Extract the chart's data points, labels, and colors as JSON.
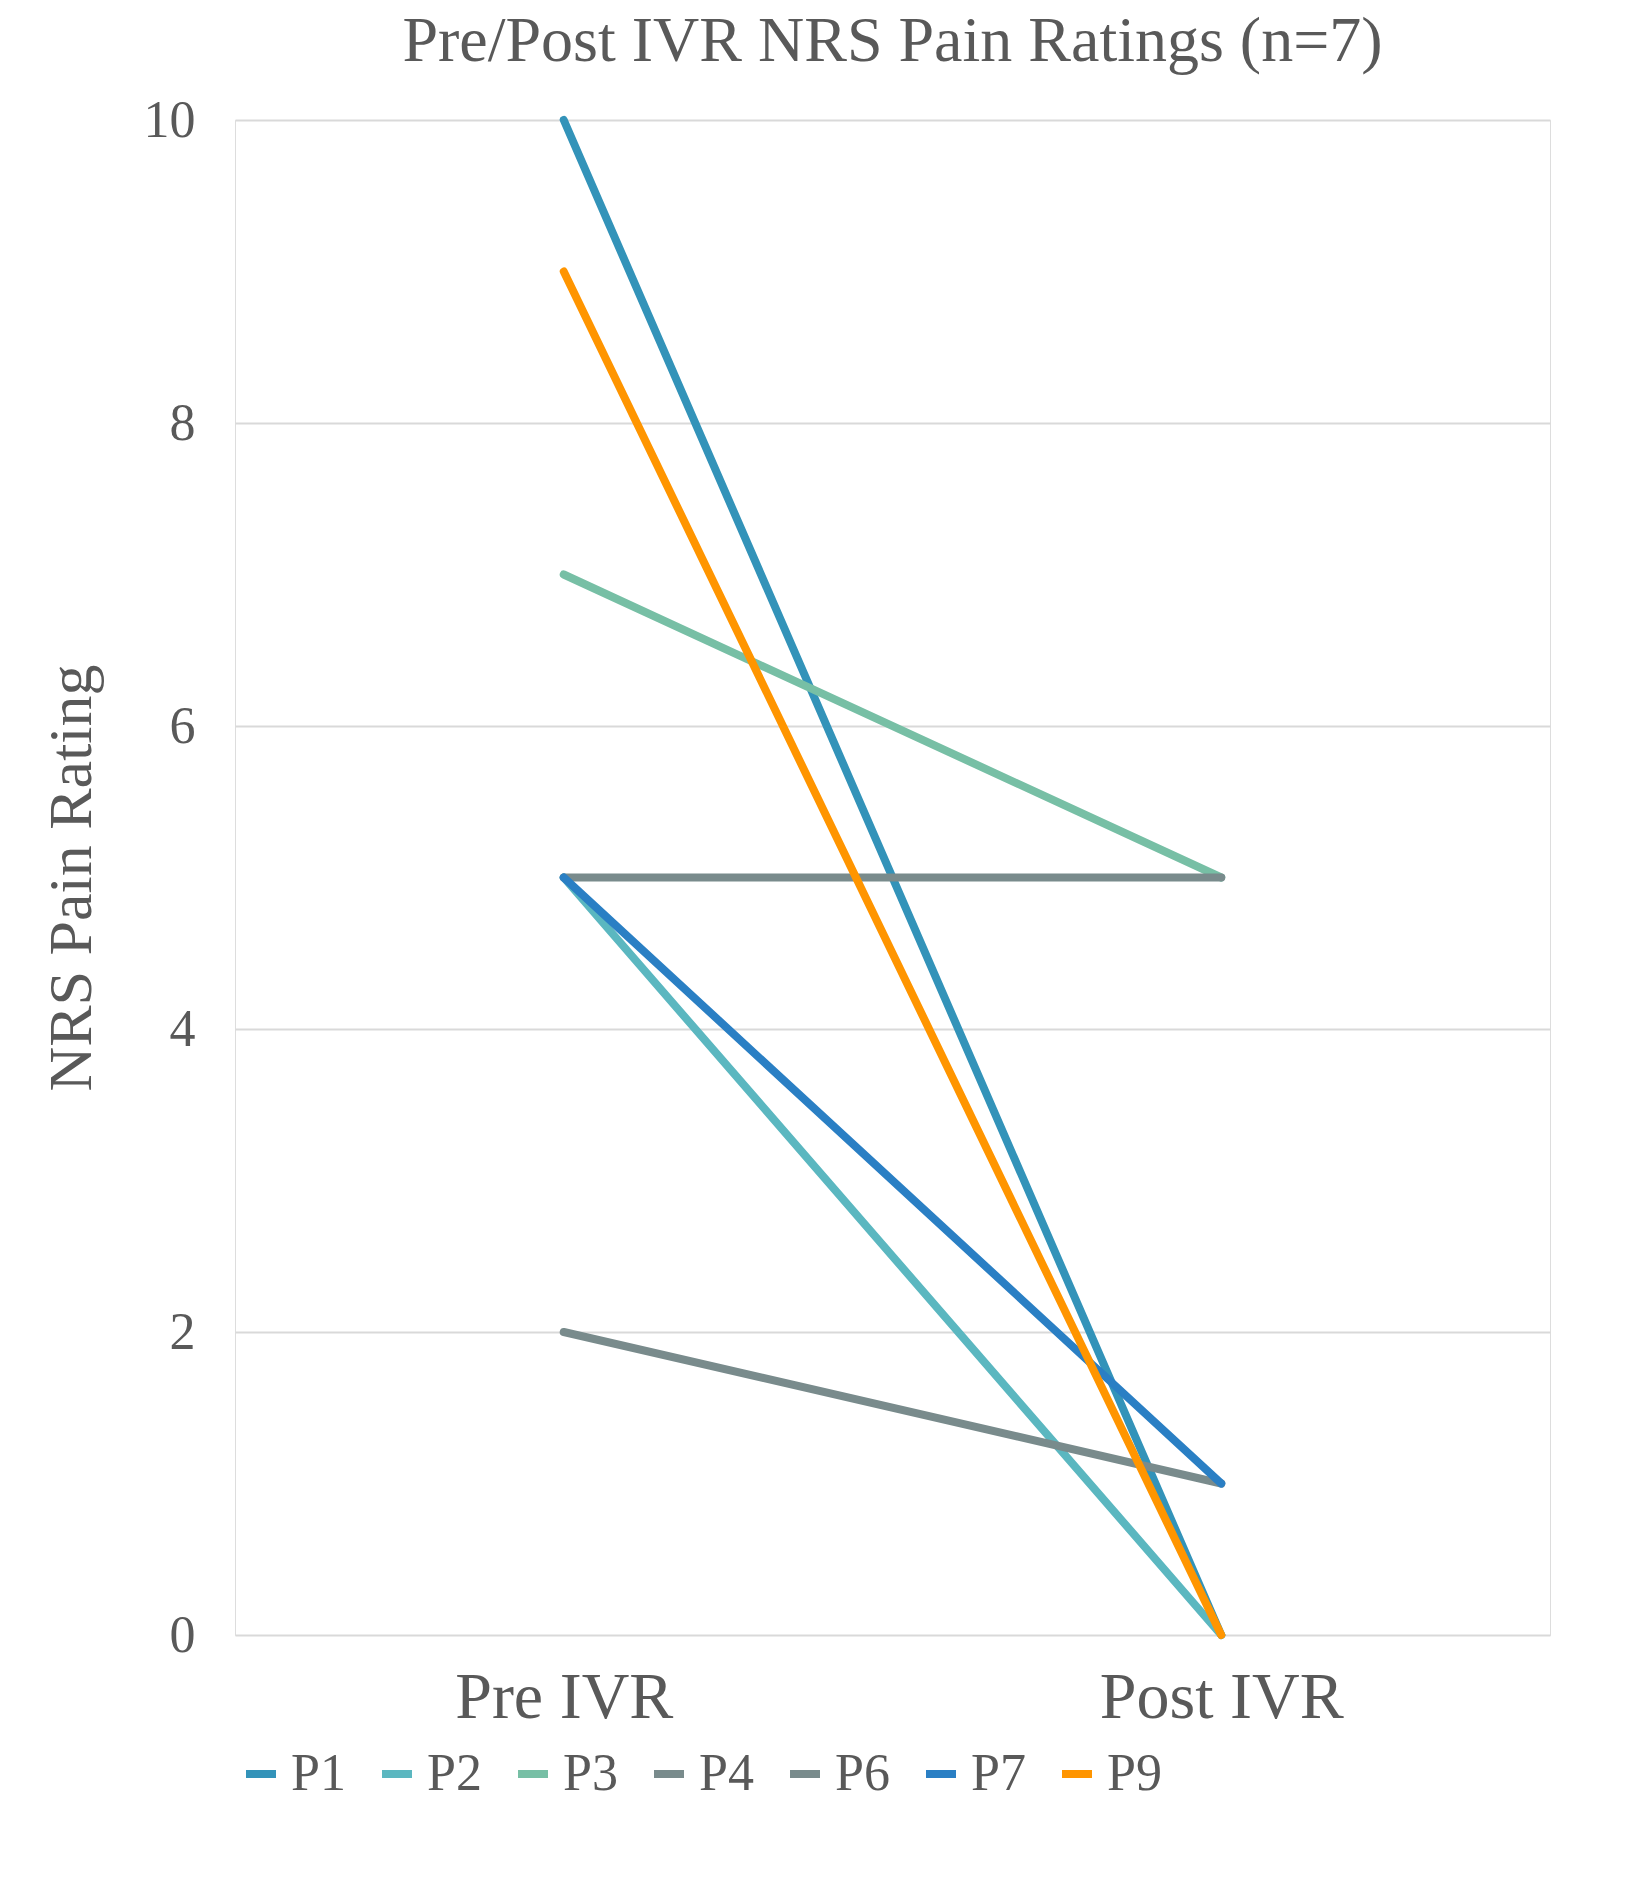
{
  "chart_data": {
    "type": "line",
    "title": "Pre/Post IVR NRS Pain Ratings (n=7)",
    "ylabel": "NRS Pain Rating",
    "categories": [
      "Pre IVR",
      "Post IVR"
    ],
    "series": [
      {
        "name": "P1",
        "color": "#3393b9",
        "values": [
          10,
          0
        ]
      },
      {
        "name": "P2",
        "color": "#5bb7c0",
        "values": [
          5,
          0
        ]
      },
      {
        "name": "P3",
        "color": "#77bfa5",
        "values": [
          7,
          5
        ]
      },
      {
        "name": "P4",
        "color": "#798b8c",
        "values": [
          5,
          5
        ]
      },
      {
        "name": "P6",
        "color": "#798b8c",
        "values": [
          2,
          1
        ]
      },
      {
        "name": "P7",
        "color": "#2a7fc4",
        "values": [
          5,
          1
        ]
      },
      {
        "name": "P9",
        "color": "#ff9500",
        "values": [
          9,
          0
        ]
      }
    ],
    "ylim": [
      0,
      10
    ],
    "yticks": [
      0,
      2,
      4,
      6,
      8,
      10
    ],
    "grid": "y",
    "legend": "bottom",
    "marker": "none",
    "line_style": "solid"
  }
}
